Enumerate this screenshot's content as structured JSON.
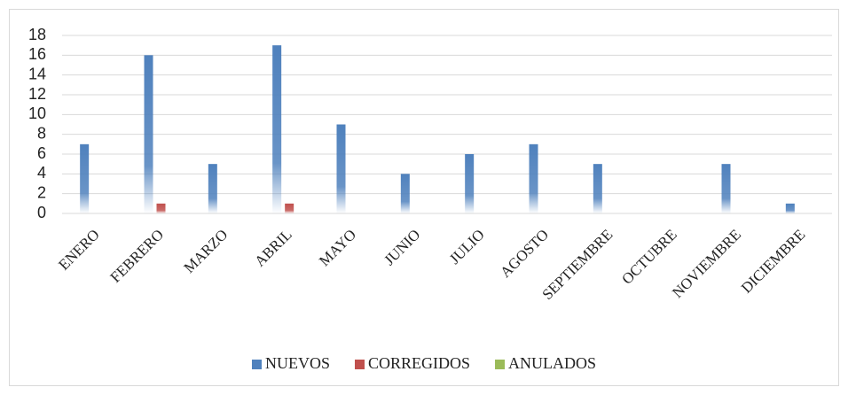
{
  "chart_data": {
    "type": "bar",
    "categories": [
      "ENERO",
      "FEBRERO",
      "MARZO",
      "ABRIL",
      "MAYO",
      "JUNIO",
      "JULIO",
      "AGOSTO",
      "SEPTIEMBRE",
      "OCTUBRE",
      "NOVIEMBRE",
      "DICIEMBRE"
    ],
    "series": [
      {
        "name": "NUEVOS",
        "color": "#4f81bd",
        "values": [
          7,
          16,
          5,
          17,
          9,
          4,
          6,
          7,
          5,
          0,
          5,
          1
        ]
      },
      {
        "name": "CORREGIDOS",
        "color": "#c0504d",
        "values": [
          0,
          1,
          0,
          1,
          0,
          0,
          0,
          0,
          0,
          0,
          0,
          0
        ]
      },
      {
        "name": "ANULADOS",
        "color": "#9bbb59",
        "values": [
          0,
          0,
          0,
          0,
          0,
          0,
          0,
          0,
          0,
          0,
          0,
          0
        ]
      }
    ],
    "ylim": [
      0,
      18
    ],
    "yticks": [
      0,
      2,
      4,
      6,
      8,
      10,
      12,
      14,
      16,
      18
    ],
    "grid": true,
    "legend": "bottom"
  }
}
